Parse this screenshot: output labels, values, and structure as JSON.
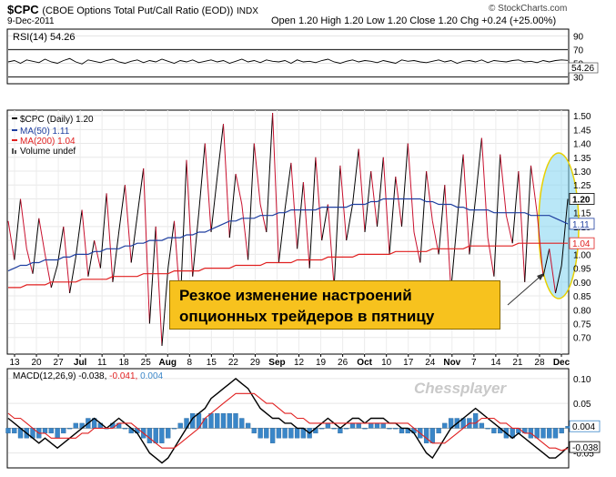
{
  "header": {
    "symbol": "$CPC",
    "description": "(CBOE Options Total Put/Call Ratio (EOD))",
    "exchange": "INDX",
    "date": "9-Dec-2011",
    "ohlc": "Open 1.20  High 1.20  Low 1.20  Close 1.20  Chg +0.24 (+25.00%)",
    "copyright": "© StockCharts.com",
    "watermark": "Chessplayer"
  },
  "callout": {
    "line1": "Резкое изменение настроений",
    "line2": "опционных трейдеров в пятницу"
  },
  "colors": {
    "price_up": "#000000",
    "price_down": "#c8102e",
    "ma50": "#1f3fa0",
    "ma200": "#e02020",
    "histogram": "#3a86c8",
    "highlight": "#7fd3f0",
    "callout_bg": "#f7c21e"
  },
  "chart_data": [
    {
      "type": "line",
      "panel": "rsi",
      "series": [
        {
          "name": "RSI(14)",
          "last": "54.26",
          "values": [
            52,
            54,
            50,
            55,
            53,
            51,
            56,
            52,
            50,
            54,
            57,
            52,
            49,
            55,
            53,
            51,
            54,
            56,
            52,
            50,
            53,
            55,
            51,
            54,
            52,
            56,
            53,
            50,
            54,
            52,
            55,
            51,
            53,
            55,
            52,
            54,
            50,
            53,
            56,
            52,
            54,
            51,
            55,
            53,
            52,
            54,
            50,
            55,
            52,
            53,
            51,
            54,
            56,
            52,
            50,
            53,
            55,
            52,
            54,
            53,
            51,
            54,
            52,
            50,
            55,
            53,
            54,
            52,
            51,
            53,
            55,
            52,
            54,
            50,
            53,
            54,
            52,
            55,
            51,
            54,
            53,
            52,
            54,
            55,
            52,
            53,
            51,
            54,
            52,
            54,
            55,
            54.26
          ]
        }
      ],
      "levels": [
        70,
        30
      ],
      "y_ticks": [
        "90",
        "70",
        "50",
        "30"
      ],
      "ylim": [
        20,
        100
      ]
    },
    {
      "type": "line",
      "panel": "price",
      "legend": [
        "$CPC (Daily) 1.20",
        "MA(50) 1.11",
        "MA(200) 1.04",
        "Volume undef"
      ],
      "y_ticks": [
        "1.50",
        "1.45",
        "1.40",
        "1.35",
        "1.30",
        "1.25",
        "1.20",
        "1.15",
        "1.10",
        "1.05",
        "1.00",
        "0.95",
        "0.90",
        "0.85",
        "0.80",
        "0.75",
        "0.70"
      ],
      "ylim": [
        0.64,
        1.52
      ],
      "right_labels": [
        "1.20",
        "1.11",
        "1.04"
      ],
      "series": [
        {
          "name": "$CPC (Daily)",
          "values": [
            1.12,
            0.98,
            1.2,
            1.02,
            0.93,
            1.13,
            1.0,
            0.88,
            0.96,
            1.1,
            0.86,
            0.99,
            1.16,
            0.92,
            1.05,
            0.95,
            1.22,
            0.9,
            1.08,
            1.25,
            0.97,
            1.14,
            1.31,
            0.75,
            1.1,
            0.67,
            0.95,
            1.12,
            0.82,
            1.34,
            0.92,
            1.15,
            1.4,
            1.08,
            1.28,
            1.47,
            1.06,
            1.29,
            1.18,
            0.98,
            1.4,
            1.18,
            1.08,
            1.51,
            0.97,
            1.16,
            1.33,
            1.02,
            1.26,
            0.95,
            1.35,
            1.05,
            1.18,
            0.88,
            1.32,
            1.05,
            1.18,
            1.38,
            1.08,
            1.3,
            1.1,
            1.35,
            1.0,
            1.28,
            1.1,
            1.4,
            1.08,
            0.97,
            1.3,
            1.12,
            1.0,
            1.25,
            0.87,
            1.12,
            1.36,
            1.0,
            1.2,
            1.42,
            1.06,
            0.92,
            1.36,
            1.14,
            1.04,
            1.3,
            0.9,
            1.32,
            1.15,
            0.92,
            1.02,
            0.86,
            0.96,
            1.2
          ]
        },
        {
          "name": "MA(50)",
          "values": [
            0.94,
            0.95,
            0.96,
            0.96,
            0.97,
            0.97,
            0.98,
            0.98,
            0.98,
            0.99,
            0.99,
            1.0,
            1.0,
            1.0,
            1.01,
            1.01,
            1.02,
            1.02,
            1.02,
            1.03,
            1.03,
            1.04,
            1.04,
            1.05,
            1.05,
            1.05,
            1.06,
            1.06,
            1.06,
            1.07,
            1.07,
            1.08,
            1.08,
            1.09,
            1.1,
            1.11,
            1.12,
            1.12,
            1.13,
            1.13,
            1.13,
            1.14,
            1.14,
            1.14,
            1.15,
            1.15,
            1.16,
            1.16,
            1.16,
            1.16,
            1.16,
            1.17,
            1.17,
            1.17,
            1.17,
            1.17,
            1.18,
            1.18,
            1.18,
            1.19,
            1.19,
            1.2,
            1.2,
            1.2,
            1.2,
            1.2,
            1.2,
            1.2,
            1.19,
            1.19,
            1.18,
            1.18,
            1.18,
            1.17,
            1.17,
            1.16,
            1.16,
            1.16,
            1.16,
            1.15,
            1.15,
            1.15,
            1.15,
            1.15,
            1.15,
            1.14,
            1.14,
            1.14,
            1.14,
            1.13,
            1.12,
            1.11
          ]
        },
        {
          "name": "MA(200)",
          "values": [
            0.88,
            0.88,
            0.88,
            0.89,
            0.89,
            0.89,
            0.89,
            0.9,
            0.9,
            0.9,
            0.9,
            0.9,
            0.91,
            0.91,
            0.91,
            0.91,
            0.91,
            0.92,
            0.92,
            0.92,
            0.92,
            0.92,
            0.93,
            0.93,
            0.93,
            0.93,
            0.93,
            0.94,
            0.94,
            0.94,
            0.94,
            0.94,
            0.95,
            0.95,
            0.95,
            0.95,
            0.95,
            0.96,
            0.96,
            0.96,
            0.96,
            0.96,
            0.97,
            0.97,
            0.97,
            0.97,
            0.97,
            0.98,
            0.98,
            0.98,
            0.98,
            0.98,
            0.99,
            0.99,
            0.99,
            0.99,
            0.99,
            1.0,
            1.0,
            1.0,
            1.0,
            1.0,
            1.0,
            1.01,
            1.01,
            1.01,
            1.01,
            1.01,
            1.01,
            1.02,
            1.02,
            1.02,
            1.02,
            1.02,
            1.02,
            1.03,
            1.03,
            1.03,
            1.03,
            1.03,
            1.03,
            1.03,
            1.03,
            1.04,
            1.04,
            1.04,
            1.04,
            1.04,
            1.04,
            1.04,
            1.04,
            1.04
          ]
        }
      ]
    },
    {
      "type": "line",
      "panel": "macd",
      "legend": [
        "MACD(12,26,9) -0.038, ",
        "-0.041, ",
        "0.004"
      ],
      "y_ticks": [
        "0.10",
        "0.05",
        "0.00",
        "-0.05"
      ],
      "right_labels": [
        "0.004",
        "-0.038"
      ],
      "ylim": [
        -0.08,
        0.12
      ],
      "series": [
        {
          "name": "MACD",
          "values": [
            0.02,
            0.01,
            0.0,
            -0.01,
            -0.02,
            -0.03,
            -0.02,
            -0.03,
            -0.04,
            -0.03,
            -0.02,
            -0.01,
            0.0,
            0.01,
            0.02,
            0.01,
            0.0,
            0.01,
            0.02,
            0.01,
            0.0,
            -0.01,
            -0.03,
            -0.05,
            -0.06,
            -0.07,
            -0.06,
            -0.04,
            -0.02,
            0.0,
            0.02,
            0.03,
            0.04,
            0.06,
            0.07,
            0.08,
            0.09,
            0.1,
            0.09,
            0.08,
            0.06,
            0.04,
            0.03,
            0.02,
            0.02,
            0.01,
            0.01,
            0.0,
            0.0,
            -0.01,
            0.0,
            0.01,
            0.02,
            0.01,
            0.0,
            0.01,
            0.02,
            0.02,
            0.01,
            0.02,
            0.02,
            0.02,
            0.01,
            0.01,
            0.0,
            0.0,
            -0.01,
            -0.03,
            -0.05,
            -0.06,
            -0.04,
            -0.02,
            0.0,
            0.01,
            0.02,
            0.03,
            0.04,
            0.03,
            0.02,
            0.01,
            0.0,
            -0.01,
            -0.02,
            -0.01,
            -0.02,
            -0.03,
            -0.04,
            -0.05,
            -0.06,
            -0.06,
            -0.05,
            -0.038
          ]
        },
        {
          "name": "Signal",
          "values": [
            0.03,
            0.02,
            0.02,
            0.01,
            0.0,
            -0.01,
            -0.01,
            -0.02,
            -0.02,
            -0.02,
            -0.02,
            -0.02,
            -0.01,
            -0.01,
            0.0,
            0.0,
            0.0,
            0.0,
            0.01,
            0.01,
            0.01,
            0.0,
            -0.01,
            -0.02,
            -0.03,
            -0.04,
            -0.04,
            -0.04,
            -0.03,
            -0.02,
            -0.01,
            0.0,
            0.02,
            0.03,
            0.04,
            0.05,
            0.06,
            0.07,
            0.07,
            0.07,
            0.07,
            0.06,
            0.05,
            0.05,
            0.04,
            0.03,
            0.03,
            0.02,
            0.02,
            0.01,
            0.01,
            0.01,
            0.01,
            0.01,
            0.01,
            0.01,
            0.01,
            0.01,
            0.01,
            0.01,
            0.01,
            0.01,
            0.01,
            0.01,
            0.01,
            0.01,
            0.0,
            -0.01,
            -0.02,
            -0.03,
            -0.03,
            -0.03,
            -0.02,
            -0.01,
            0.0,
            0.01,
            0.01,
            0.02,
            0.02,
            0.02,
            0.01,
            0.01,
            0.0,
            0.0,
            -0.01,
            -0.01,
            -0.02,
            -0.03,
            -0.04,
            -0.04,
            -0.045,
            -0.041
          ]
        }
      ],
      "histogram": [
        -0.01,
        -0.01,
        -0.02,
        -0.02,
        -0.02,
        -0.02,
        -0.01,
        -0.01,
        -0.02,
        -0.01,
        0.0,
        0.01,
        0.01,
        0.02,
        0.02,
        0.01,
        0.0,
        0.01,
        0.01,
        0.0,
        -0.01,
        -0.01,
        -0.02,
        -0.03,
        -0.03,
        -0.03,
        -0.02,
        0.0,
        0.01,
        0.02,
        0.03,
        0.03,
        0.02,
        0.03,
        0.03,
        0.03,
        0.03,
        0.03,
        0.02,
        0.01,
        -0.01,
        -0.02,
        -0.02,
        -0.03,
        -0.02,
        -0.02,
        -0.02,
        -0.02,
        -0.02,
        -0.02,
        -0.01,
        0.0,
        0.01,
        0.0,
        -0.01,
        0.0,
        0.01,
        0.01,
        0.0,
        0.01,
        0.01,
        0.01,
        0.0,
        0.0,
        -0.01,
        -0.01,
        -0.01,
        -0.02,
        -0.03,
        -0.03,
        -0.01,
        0.01,
        0.02,
        0.02,
        0.02,
        0.02,
        0.03,
        0.01,
        0.0,
        -0.01,
        -0.01,
        -0.02,
        -0.02,
        -0.01,
        -0.01,
        -0.02,
        -0.02,
        -0.02,
        -0.02,
        -0.02,
        -0.01,
        0.004
      ]
    }
  ],
  "x_axis": {
    "labels": [
      "13",
      "20",
      "27",
      "Jul",
      "11",
      "18",
      "25",
      "Aug",
      "8",
      "15",
      "22",
      "29",
      "Sep",
      "12",
      "19",
      "26",
      "Oct",
      "10",
      "17",
      "24",
      "Nov",
      "7",
      "14",
      "21",
      "28",
      "Dec"
    ],
    "bold": [
      "Jul",
      "Aug",
      "Sep",
      "Oct",
      "Nov",
      "Dec"
    ]
  }
}
